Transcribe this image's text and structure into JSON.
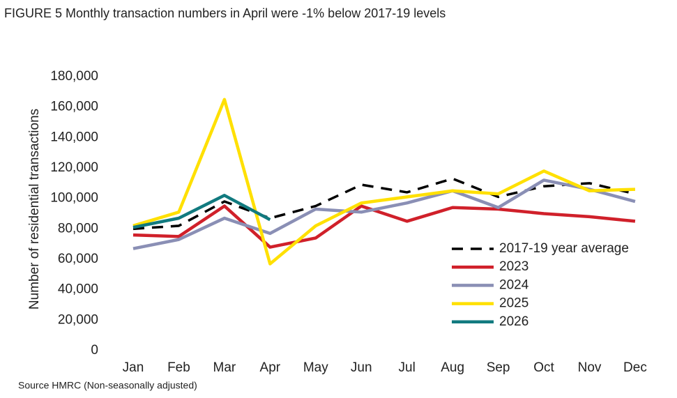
{
  "chart_data": {
    "type": "line",
    "title": "FIGURE 5 Monthly transaction numbers in April were -1% below 2017-19 levels",
    "y_label": "Number of residential transactions",
    "source": "Source HMRC (Non-seasonally adjusted)",
    "categories": [
      "Jan",
      "Feb",
      "Mar",
      "Apr",
      "May",
      "Jun",
      "Jul",
      "Aug",
      "Sep",
      "Oct",
      "Nov",
      "Dec"
    ],
    "series": [
      {
        "name": "2017-19 year average",
        "color": "#000000",
        "dashed": true,
        "values": [
          80000,
          82000,
          98000,
          87000,
          95000,
          109000,
          104000,
          113000,
          101000,
          108000,
          110000,
          103000
        ]
      },
      {
        "name": "2023",
        "color": "#d0202a",
        "values": [
          76000,
          75000,
          95000,
          68000,
          74000,
          95000,
          85000,
          94000,
          93000,
          90000,
          88000,
          85000
        ]
      },
      {
        "name": "2024",
        "color": "#8a8fb5",
        "values": [
          67000,
          73000,
          87000,
          77000,
          93000,
          91000,
          97000,
          105000,
          94000,
          112000,
          106000,
          98000
        ]
      },
      {
        "name": "2025",
        "color": "#ffe000",
        "values": [
          82000,
          91000,
          165000,
          57000,
          82000,
          97000,
          101000,
          105000,
          103000,
          118000,
          105000,
          106000
        ]
      },
      {
        "name": "2026",
        "color": "#117a7f",
        "values": [
          81000,
          87000,
          102000,
          86000,
          null,
          null,
          null,
          null,
          null,
          null,
          null,
          null
        ]
      }
    ],
    "ylim": [
      0,
      180000
    ],
    "yticks": [
      0,
      {
        "value": 20000,
        "label": "20,000"
      },
      {
        "value": 40000,
        "label": "40,000"
      },
      {
        "value": 60000,
        "label": "60,000"
      },
      {
        "value": 80000,
        "label": "80,000"
      },
      {
        "value": 100000,
        "label": "100,000"
      },
      {
        "value": 120000,
        "label": "120,000"
      },
      {
        "value": 140000,
        "label": "140,000"
      },
      {
        "value": 160000,
        "label": "160,000"
      },
      {
        "value": 180000,
        "label": "180,000"
      }
    ],
    "grid": false,
    "legend": "lower right"
  }
}
